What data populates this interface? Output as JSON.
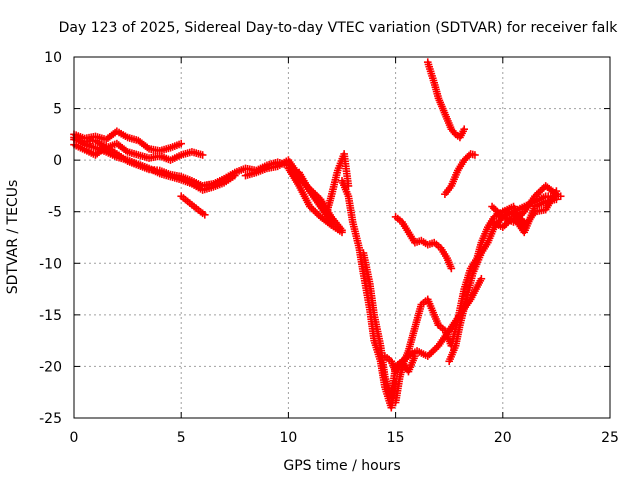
{
  "chart_data": {
    "type": "scatter",
    "title": "Day 123 of 2025, Sidereal Day-to-day VTEC variation (SDTVAR) for receiver falk",
    "xlabel": "GPS time / hours",
    "ylabel": "SDTVAR / TECUs",
    "xlim": [
      0,
      25
    ],
    "ylim": [
      -25,
      10
    ],
    "xticks": [
      0,
      5,
      10,
      15,
      20,
      25
    ],
    "yticks": [
      10,
      5,
      0,
      -5,
      -10,
      -15,
      -20,
      -25
    ],
    "grid": true,
    "marker": "plus",
    "color": "#ff0000",
    "series": [
      {
        "x": [
          0.0,
          0.5,
          1.0,
          1.5,
          2.0,
          2.5,
          3.0,
          3.5,
          4.0,
          4.5,
          5.0
        ],
        "y": [
          2.5,
          2.1,
          2.3,
          2.0,
          2.8,
          2.2,
          1.9,
          1.1,
          0.9,
          1.2,
          1.6
        ]
      },
      {
        "x": [
          0.0,
          0.5,
          1.0,
          1.5,
          2.0,
          2.5,
          3.0,
          3.5,
          4.0,
          4.5,
          5.0,
          5.5,
          6.0
        ],
        "y": [
          2.0,
          1.8,
          1.9,
          1.2,
          1.6,
          0.8,
          0.5,
          0.2,
          0.4,
          0.0,
          0.5,
          0.8,
          0.5
        ]
      },
      {
        "x": [
          0.0,
          0.5,
          1.0,
          1.5,
          2.0,
          2.5,
          3.0,
          3.5,
          4.0,
          4.5,
          5.0,
          5.5,
          6.0,
          6.5
        ],
        "y": [
          1.5,
          1.0,
          0.5,
          1.3,
          0.6,
          -0.1,
          -0.5,
          -0.9,
          -1.0,
          -1.4,
          -1.6,
          -2.0,
          -2.5,
          -2.3
        ]
      },
      {
        "x": [
          0.0,
          0.5,
          1.0,
          1.5,
          2.0,
          2.5,
          3.0,
          3.5,
          4.0,
          4.5,
          5.0,
          5.5,
          6.0,
          6.5,
          7.0,
          7.5
        ],
        "y": [
          2.2,
          1.5,
          1.2,
          0.8,
          0.3,
          0.0,
          -0.4,
          -0.8,
          -1.3,
          -1.6,
          -1.9,
          -2.3,
          -2.9,
          -2.6,
          -2.2,
          -1.5
        ]
      },
      {
        "x": [
          5.0,
          5.3,
          5.6,
          5.9,
          6.1
        ],
        "y": [
          -3.5,
          -4.0,
          -4.5,
          -5.0,
          -5.3
        ]
      },
      {
        "x": [
          6.0,
          6.5,
          7.0,
          7.5,
          8.0,
          8.5,
          9.0,
          9.5,
          10.0,
          10.5,
          11.0,
          11.5,
          12.0,
          12.5
        ],
        "y": [
          -2.5,
          -2.3,
          -1.8,
          -1.2,
          -0.8,
          -1.0,
          -0.5,
          -0.2,
          -0.5,
          -1.8,
          -2.8,
          -3.8,
          -5.5,
          -6.8
        ]
      },
      {
        "x": [
          8.0,
          8.5,
          9.0,
          9.5,
          10.0,
          10.5,
          11.0,
          11.5,
          12.0
        ],
        "y": [
          -1.5,
          -1.2,
          -0.8,
          -0.6,
          0.0,
          -1.5,
          -3.0,
          -4.5,
          -6.0
        ]
      },
      {
        "x": [
          10.0,
          10.5,
          11.0,
          11.5,
          12.0,
          12.5
        ],
        "y": [
          -0.8,
          -2.5,
          -4.5,
          -5.5,
          -6.3,
          -7.0
        ]
      },
      {
        "x": [
          10.5,
          11.0,
          11.5,
          12.0
        ],
        "y": [
          -1.2,
          -3.0,
          -4.5,
          -5.8
        ]
      },
      {
        "x": [
          11.8,
          12.0,
          12.3,
          12.6,
          12.8
        ],
        "y": [
          -5.0,
          -3.5,
          -1.0,
          0.6,
          -2.5
        ]
      },
      {
        "x": [
          12.5,
          12.8,
          13.0,
          13.3,
          13.5,
          13.8,
          14.0,
          14.3,
          14.5,
          14.8,
          15.0
        ],
        "y": [
          -2.0,
          -3.5,
          -6.0,
          -8.5,
          -11.0,
          -14.5,
          -17.5,
          -19.5,
          -22.0,
          -24.0,
          -21.5
        ]
      },
      {
        "x": [
          13.5,
          13.8,
          14.0,
          14.3,
          14.5,
          14.8,
          15.0,
          15.3,
          15.6,
          15.9
        ],
        "y": [
          -9.0,
          -12.0,
          -15.0,
          -18.0,
          -21.0,
          -23.0,
          -20.0,
          -19.5,
          -20.5,
          -19.0
        ]
      },
      {
        "x": [
          15.0,
          15.2,
          15.4,
          15.6,
          15.8,
          16.0,
          16.2,
          16.5,
          16.8,
          17.0
        ],
        "y": [
          -23.5,
          -21.0,
          -19.5,
          -18.5,
          -17.0,
          -15.5,
          -14.0,
          -13.5,
          -15.0,
          -16.0
        ]
      },
      {
        "x": [
          14.5,
          14.8,
          15.0,
          15.3,
          15.6,
          16.0,
          16.5,
          17.0,
          17.5,
          18.0,
          18.5,
          19.0
        ],
        "y": [
          -19.0,
          -19.5,
          -20.5,
          -19.5,
          -19.0,
          -18.5,
          -19.0,
          -18.0,
          -16.5,
          -15.0,
          -13.5,
          -11.5
        ]
      },
      {
        "x": [
          15.0,
          15.3,
          15.6,
          15.9,
          16.2,
          16.5,
          16.8,
          17.1,
          17.4,
          17.6
        ],
        "y": [
          -5.5,
          -6.0,
          -7.0,
          -8.0,
          -7.8,
          -8.2,
          -8.0,
          -8.5,
          -9.5,
          -10.5
        ]
      },
      {
        "x": [
          16.5,
          16.8,
          17.0,
          17.2,
          17.4,
          17.6,
          17.8,
          18.0,
          18.2
        ],
        "y": [
          9.5,
          7.5,
          6.0,
          5.0,
          4.0,
          3.0,
          2.5,
          2.2,
          3.0
        ]
      },
      {
        "x": [
          17.3,
          17.6,
          17.9,
          18.2,
          18.5,
          18.7
        ],
        "y": [
          -3.3,
          -2.5,
          -1.0,
          0.0,
          0.6,
          0.5
        ]
      },
      {
        "x": [
          17.0,
          17.3,
          17.6,
          17.9,
          18.2,
          18.5,
          18.8,
          19.0,
          19.3,
          19.6,
          20.0,
          20.5,
          21.0
        ],
        "y": [
          -16.0,
          -16.5,
          -18.0,
          -15.5,
          -12.5,
          -10.5,
          -9.5,
          -8.0,
          -6.5,
          -5.5,
          -5.0,
          -5.2,
          -6.0
        ]
      },
      {
        "x": [
          17.5,
          17.8,
          18.0,
          18.3,
          18.6,
          19.0,
          19.3,
          19.6,
          20.0,
          20.5,
          21.0,
          21.5,
          22.0,
          22.7
        ],
        "y": [
          -19.5,
          -18.0,
          -16.0,
          -13.5,
          -11.0,
          -9.0,
          -8.0,
          -6.5,
          -5.5,
          -5.0,
          -4.5,
          -4.0,
          -3.5,
          -3.5
        ]
      },
      {
        "x": [
          19.5,
          20.0,
          20.5,
          21.0,
          21.5,
          22.0,
          22.5
        ],
        "y": [
          -4.5,
          -5.5,
          -6.0,
          -5.0,
          -3.5,
          -2.5,
          -3.3
        ]
      },
      {
        "x": [
          19.5,
          20.0,
          20.5,
          21.0,
          21.5,
          22.0,
          22.5
        ],
        "y": [
          -6.0,
          -6.5,
          -5.5,
          -7.0,
          -4.5,
          -4.0,
          -3.8
        ]
      },
      {
        "x": [
          20.0,
          20.5,
          21.0,
          21.5,
          22.0,
          22.5
        ],
        "y": [
          -5.0,
          -4.5,
          -6.5,
          -5.0,
          -4.8,
          -3.0
        ]
      }
    ]
  }
}
